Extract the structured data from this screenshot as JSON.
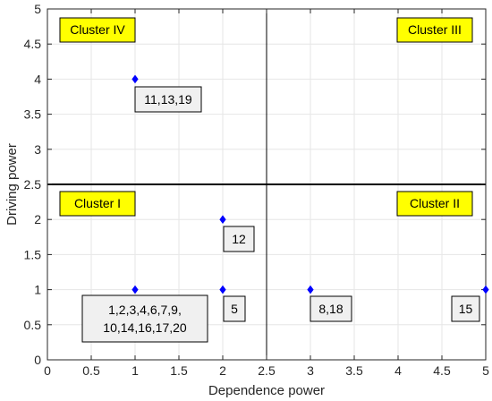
{
  "chart_data": {
    "type": "scatter",
    "title": "",
    "xlabel": "Dependence power",
    "ylabel": "Driving power",
    "xlim": [
      0,
      5
    ],
    "ylim": [
      0,
      5
    ],
    "x_ticks": [
      "0",
      "0.5",
      "1",
      "1.5",
      "2",
      "2.5",
      "3",
      "3.5",
      "4",
      "4.5",
      "5"
    ],
    "y_ticks": [
      "0",
      "0.5",
      "1",
      "1.5",
      "2",
      "2.5",
      "3",
      "3.5",
      "4",
      "4.5",
      "5"
    ],
    "grid": true,
    "points": [
      {
        "x": 1,
        "y": 4
      },
      {
        "x": 2,
        "y": 2
      },
      {
        "x": 1,
        "y": 1
      },
      {
        "x": 2,
        "y": 1
      },
      {
        "x": 3,
        "y": 1
      },
      {
        "x": 5,
        "y": 1
      }
    ],
    "dividers": {
      "x": 2.5,
      "y": 2.5
    },
    "clusters": [
      {
        "label": "Cluster IV",
        "position": "top-left"
      },
      {
        "label": "Cluster III",
        "position": "top-right"
      },
      {
        "label": "Cluster I",
        "position": "bottom-left"
      },
      {
        "label": "Cluster II",
        "position": "bottom-right"
      }
    ],
    "annotations": [
      {
        "lines": [
          "11,13,19"
        ]
      },
      {
        "lines": [
          "12"
        ]
      },
      {
        "lines": [
          "1,2,3,4,6,7,9,",
          "10,14,16,17,20"
        ]
      },
      {
        "lines": [
          "5"
        ]
      },
      {
        "lines": [
          "8,18"
        ]
      },
      {
        "lines": [
          "15"
        ]
      }
    ],
    "colors": {
      "marker": "#0000ff",
      "cluster_fill": "#ffff00",
      "annotation_fill": "#f0f0f0",
      "grid": "#e6e6e6",
      "divider": "#000000"
    }
  }
}
